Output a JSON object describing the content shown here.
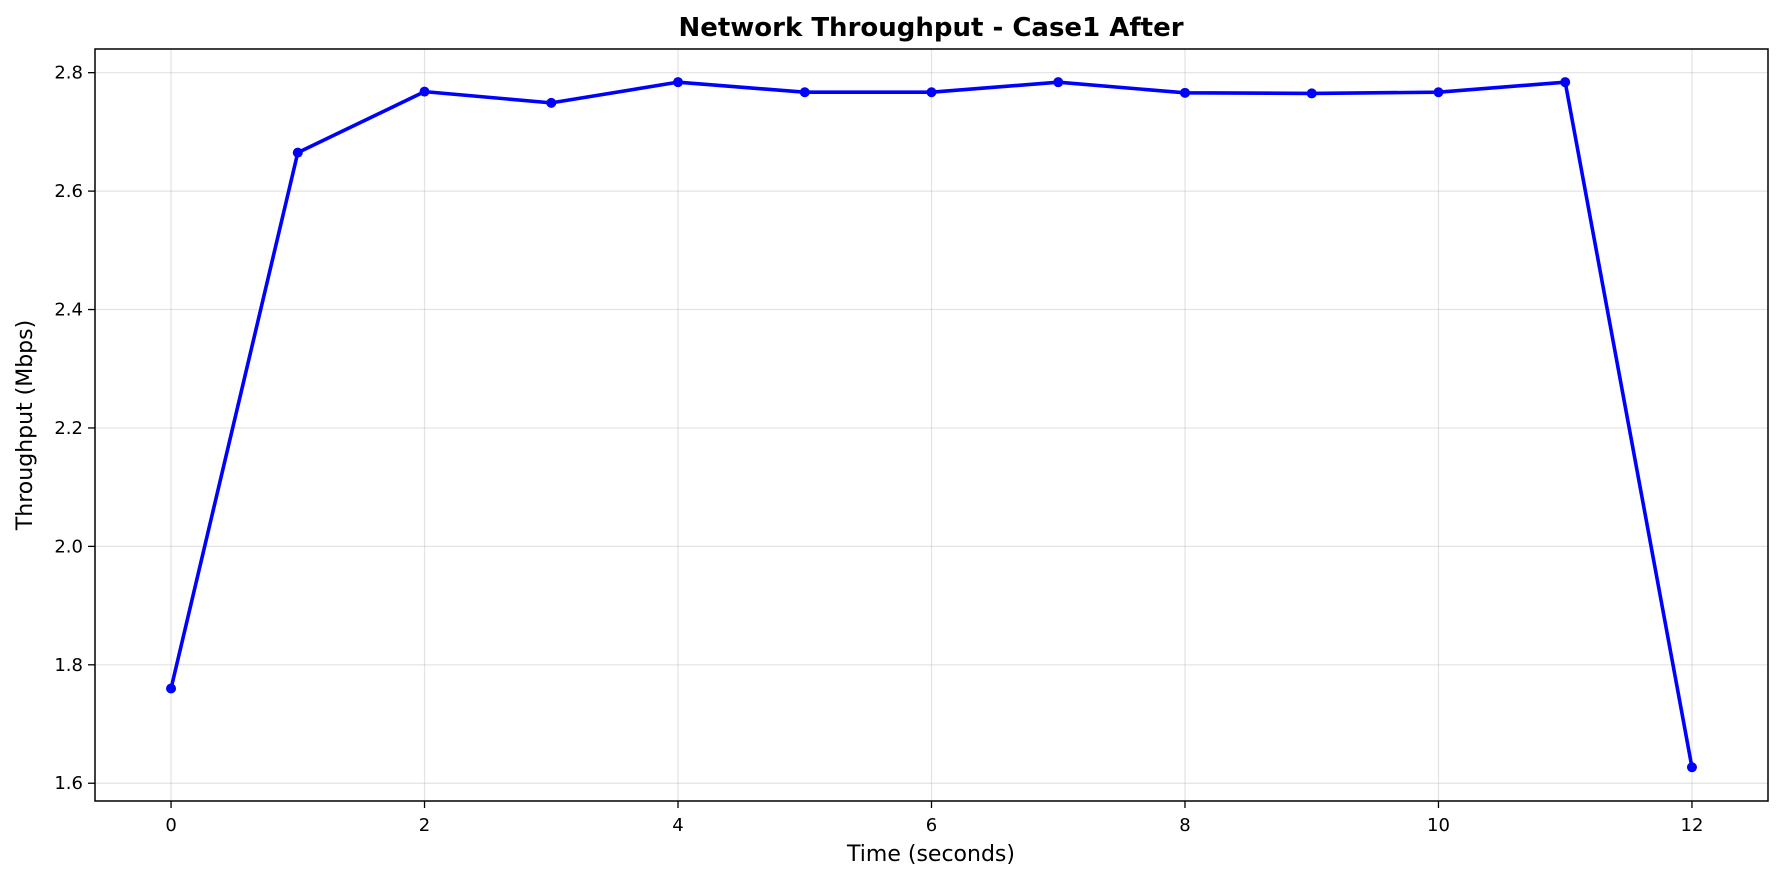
{
  "chart_data": {
    "type": "line",
    "title": "Network Throughput - Case1 After",
    "xlabel": "Time (seconds)",
    "ylabel": "Throughput (Mbps)",
    "xlim": [
      -0.6,
      12.6
    ],
    "ylim": [
      1.57,
      2.84
    ],
    "xticks": [
      0,
      2,
      4,
      6,
      8,
      10,
      12
    ],
    "yticks": [
      1.6,
      1.8,
      2.0,
      2.2,
      2.4,
      2.6,
      2.8
    ],
    "xtick_labels": [
      "0",
      "2",
      "4",
      "6",
      "8",
      "10",
      "12"
    ],
    "ytick_labels": [
      "1.6",
      "1.8",
      "2.0",
      "2.2",
      "2.4",
      "2.6",
      "2.8"
    ],
    "grid": true,
    "series": [
      {
        "color": "#0000ff",
        "marker": "circle",
        "x": [
          0,
          1,
          2,
          3,
          4,
          5,
          6,
          7,
          8,
          9,
          10,
          11,
          12
        ],
        "y": [
          1.76,
          2.665,
          2.768,
          2.749,
          2.784,
          2.767,
          2.767,
          2.784,
          2.766,
          2.765,
          2.767,
          2.784,
          1.627
        ]
      }
    ]
  }
}
